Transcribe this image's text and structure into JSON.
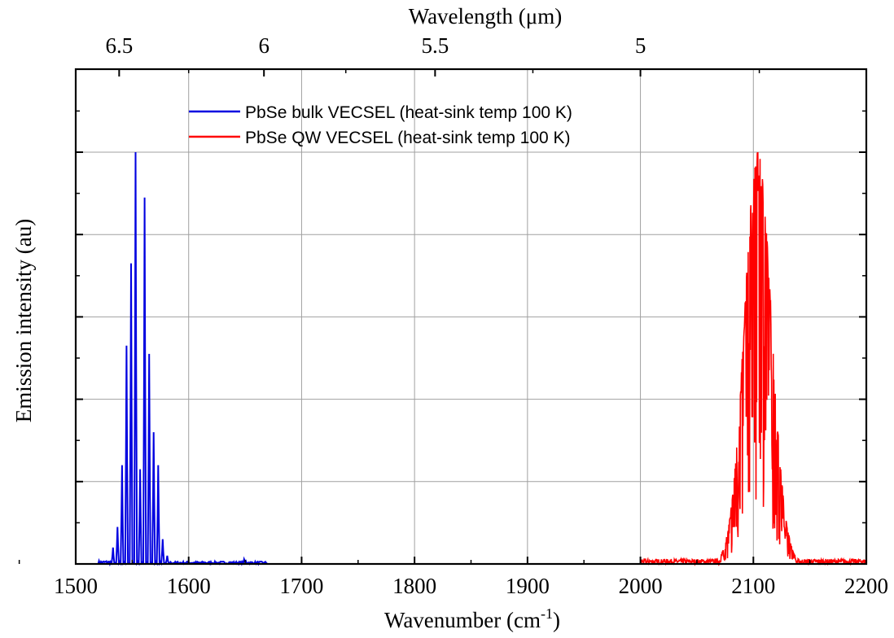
{
  "chart_data": {
    "type": "line",
    "xlabel": "Wavenumber (cm",
    "xlabel_sup": "-1",
    "xlabel_end": ")",
    "ylabel": "Emission intensity (au)",
    "top_axis_label": "Wavelength (μm)",
    "xlim": [
      1500,
      2200
    ],
    "ylim": [
      0,
      1
    ],
    "x_ticks": [
      "1500",
      "1600",
      "1700",
      "1800",
      "1900",
      "2000",
      "2100",
      "2200"
    ],
    "x_tick_values": [
      1500,
      1600,
      1700,
      1800,
      1900,
      2000,
      2100,
      2200
    ],
    "top_ticks": [
      "6.5",
      "6",
      "5.5",
      "5"
    ],
    "top_tick_wavelengths_um": [
      6.5,
      6.0,
      5.5,
      5.0
    ],
    "y_gridlines": [
      0.2,
      0.4,
      0.6,
      0.8,
      1.0
    ],
    "grid": true,
    "legend_position": "top-center",
    "series": [
      {
        "name": "PbSe bulk VECSEL (heat-sink temp 100 K)",
        "color": "#0000e0",
        "x_range": [
          1520,
          1670
        ],
        "peaks": [
          {
            "x": 1533,
            "y": 0.04
          },
          {
            "x": 1537,
            "y": 0.09
          },
          {
            "x": 1541,
            "y": 0.24
          },
          {
            "x": 1545,
            "y": 0.53
          },
          {
            "x": 1549,
            "y": 0.73
          },
          {
            "x": 1553,
            "y": 1.0
          },
          {
            "x": 1557,
            "y": 0.23
          },
          {
            "x": 1561,
            "y": 0.89
          },
          {
            "x": 1565,
            "y": 0.51
          },
          {
            "x": 1569,
            "y": 0.32
          },
          {
            "x": 1573,
            "y": 0.24
          },
          {
            "x": 1577,
            "y": 0.06
          },
          {
            "x": 1581,
            "y": 0.02
          }
        ]
      },
      {
        "name": "PbSe QW VECSEL (heat-sink temp 100 K)",
        "color": "#ff0000",
        "x_range": [
          2000,
          2200
        ],
        "peak_center": 2104,
        "peak_max": 1.0,
        "fwhm": 28
      }
    ]
  }
}
